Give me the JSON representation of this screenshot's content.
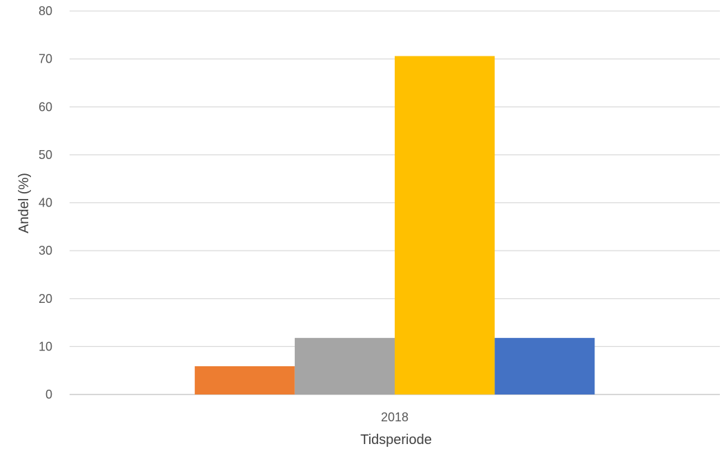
{
  "chart_data": {
    "type": "bar",
    "categories": [
      "2018"
    ],
    "series": [
      {
        "values": [
          5.9
        ],
        "color": "#ED7D31"
      },
      {
        "values": [
          11.8
        ],
        "color": "#A5A5A5"
      },
      {
        "values": [
          70.6
        ],
        "color": "#FFC000"
      },
      {
        "values": [
          11.8
        ],
        "color": "#4472C4"
      }
    ],
    "title": "",
    "xlabel": "Tidsperiode",
    "ylabel": "Andel (%)",
    "ylim": [
      0,
      80
    ],
    "yticks": [
      "0",
      "10",
      "20",
      "30",
      "40",
      "50",
      "60",
      "70",
      "80"
    ],
    "grid": true,
    "legend": "none"
  }
}
